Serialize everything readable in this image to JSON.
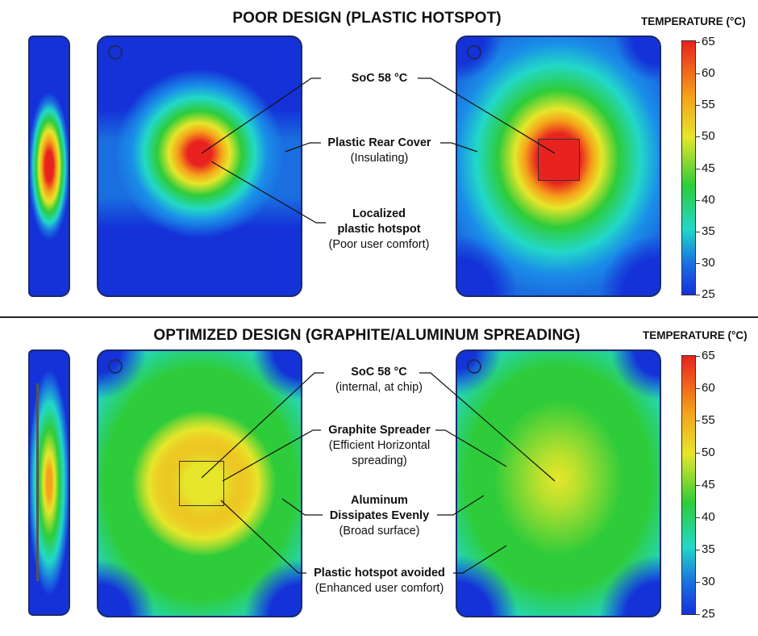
{
  "poor": {
    "title": "POOR DESIGN (PLASTIC HOTSPOT)",
    "colorbar_title": "TEMPERATURE (°C)",
    "labels": {
      "soc": {
        "bold": "SoC 58 °C",
        "normal": ""
      },
      "cover": {
        "bold": "Plastic Rear Cover",
        "normal": "(Insulating)"
      },
      "hotspot": {
        "bold1": "Localized",
        "bold2": "plastic hotspot",
        "normal": "(Poor user comfort)"
      }
    }
  },
  "optimized": {
    "title": "OPTIMIZED DESIGN (GRAPHITE/ALUMINUM SPREADING)",
    "colorbar_title": "TEMPERATURE (°C)",
    "labels": {
      "soc": {
        "bold": "SoC 58 °C",
        "normal": "(internal, at chip)"
      },
      "graphite": {
        "bold": "Graphite Spreader",
        "normal1": "(Efficient Horizontal",
        "normal2": "spreading)"
      },
      "aluminum": {
        "bold1": "Aluminum",
        "bold2": "Dissipates Evenly",
        "normal": "(Broad surface)"
      },
      "avoided": {
        "bold": "Plastic hotspot avoided",
        "normal": "(Enhanced user comfort)"
      }
    }
  },
  "colorbar": {
    "ticks": [
      "65",
      "60",
      "55",
      "50",
      "45",
      "40",
      "35",
      "30",
      "25"
    ],
    "colors": [
      "#e8231f",
      "#f5a21a",
      "#e6e62a",
      "#2ecc3a",
      "#22d8c8",
      "#1a6ee0",
      "#1432d8"
    ]
  }
}
